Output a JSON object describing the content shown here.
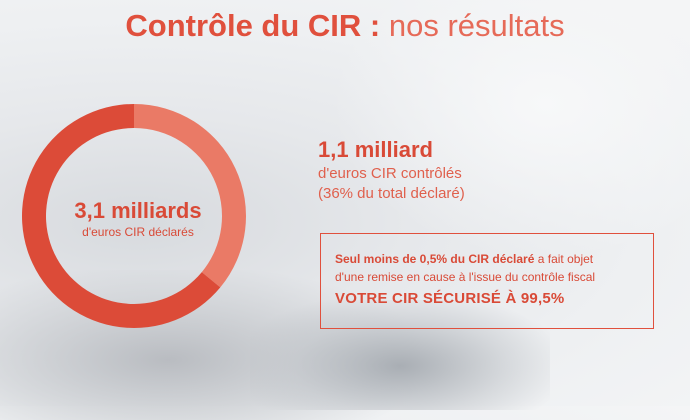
{
  "title": {
    "bold": "Contrôle du CIR :",
    "light": "nos résultats"
  },
  "colors": {
    "accent": "#e0503d",
    "donut_main": "#dc4b38",
    "donut_highlight": "#ea7a66"
  },
  "chart_data": {
    "type": "pie",
    "total_value": "3,1 milliards",
    "total_caption": "d'euros CIR déclarés",
    "slices": [
      {
        "value": 36,
        "color": "#ea7a66"
      },
      {
        "value": 64,
        "color": "#dc4b38"
      }
    ]
  },
  "stat": {
    "value": "1,1 milliard",
    "line1": "d'euros CIR contrôlés",
    "line2": "(36% du total déclaré)"
  },
  "box": {
    "lead_bold": "Seul moins de 0,5% du CIR déclaré",
    "lead_rest": " a fait objet",
    "line2": "d'une remise en cause à l'issue du contrôle fiscal",
    "strong": "VOTRE CIR  SÉCURISÉ À 99,5%"
  }
}
